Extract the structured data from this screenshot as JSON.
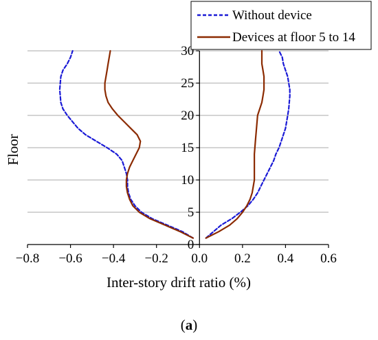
{
  "chart_data": {
    "type": "line",
    "title": "",
    "xlabel": "Inter-story drift ratio (%)",
    "ylabel": "Floor",
    "xlim": [
      -0.8,
      0.6
    ],
    "ylim": [
      0,
      30
    ],
    "x_ticks": [
      -0.8,
      -0.6,
      -0.4,
      -0.2,
      0.0,
      0.2,
      0.4,
      0.6
    ],
    "x_tick_labels": [
      "−0.8",
      "−0.6",
      "−0.4",
      "−0.2",
      "0.0",
      "0.2",
      "0.4",
      "0.6"
    ],
    "y_ticks": [
      0,
      5,
      10,
      15,
      20,
      25,
      30
    ],
    "y_tick_labels": [
      "0",
      "5",
      "10",
      "15",
      "20",
      "25",
      "30"
    ],
    "grid": "horizontal",
    "legend_position": "top-right",
    "series": [
      {
        "name": "Without device",
        "color": "#1a1ad6",
        "style": "dashed",
        "negative": [
          [
            -0.03,
            1
          ],
          [
            -0.08,
            2
          ],
          [
            -0.15,
            3
          ],
          [
            -0.22,
            4
          ],
          [
            -0.27,
            5
          ],
          [
            -0.3,
            6
          ],
          [
            -0.32,
            7
          ],
          [
            -0.33,
            8
          ],
          [
            -0.335,
            9
          ],
          [
            -0.335,
            10
          ],
          [
            -0.34,
            11
          ],
          [
            -0.35,
            12
          ],
          [
            -0.36,
            13
          ],
          [
            -0.385,
            14
          ],
          [
            -0.43,
            15
          ],
          [
            -0.48,
            16
          ],
          [
            -0.53,
            17
          ],
          [
            -0.565,
            18
          ],
          [
            -0.59,
            19
          ],
          [
            -0.615,
            20
          ],
          [
            -0.635,
            21
          ],
          [
            -0.645,
            22
          ],
          [
            -0.65,
            24
          ],
          [
            -0.645,
            26
          ],
          [
            -0.635,
            27
          ],
          [
            -0.615,
            28
          ],
          [
            -0.6,
            29
          ],
          [
            -0.59,
            30
          ]
        ],
        "positive": [
          [
            0.03,
            1
          ],
          [
            0.1,
            3
          ],
          [
            0.15,
            4
          ],
          [
            0.19,
            5
          ],
          [
            0.225,
            6
          ],
          [
            0.25,
            7
          ],
          [
            0.27,
            8
          ],
          [
            0.285,
            9
          ],
          [
            0.3,
            10
          ],
          [
            0.315,
            11
          ],
          [
            0.33,
            12
          ],
          [
            0.345,
            13
          ],
          [
            0.355,
            14
          ],
          [
            0.37,
            15
          ],
          [
            0.38,
            16
          ],
          [
            0.39,
            17
          ],
          [
            0.4,
            18
          ],
          [
            0.405,
            19
          ],
          [
            0.41,
            20
          ],
          [
            0.415,
            21
          ],
          [
            0.42,
            23
          ],
          [
            0.42,
            24
          ],
          [
            0.415,
            25
          ],
          [
            0.41,
            26
          ],
          [
            0.4,
            27
          ],
          [
            0.39,
            28
          ],
          [
            0.385,
            29
          ],
          [
            0.37,
            30
          ]
        ]
      },
      {
        "name": "Devices at floor 5 to 14",
        "color": "#8b2a00",
        "style": "solid",
        "negative": [
          [
            -0.03,
            1
          ],
          [
            -0.09,
            2
          ],
          [
            -0.16,
            3
          ],
          [
            -0.23,
            4
          ],
          [
            -0.28,
            5
          ],
          [
            -0.31,
            6
          ],
          [
            -0.325,
            7
          ],
          [
            -0.335,
            8
          ],
          [
            -0.34,
            9
          ],
          [
            -0.34,
            10
          ],
          [
            -0.335,
            11
          ],
          [
            -0.325,
            12
          ],
          [
            -0.31,
            13
          ],
          [
            -0.295,
            14
          ],
          [
            -0.28,
            15
          ],
          [
            -0.275,
            16
          ],
          [
            -0.29,
            17
          ],
          [
            -0.32,
            18
          ],
          [
            -0.35,
            19
          ],
          [
            -0.38,
            20
          ],
          [
            -0.405,
            21
          ],
          [
            -0.425,
            22
          ],
          [
            -0.435,
            23
          ],
          [
            -0.44,
            24
          ],
          [
            -0.44,
            25
          ],
          [
            -0.435,
            26
          ],
          [
            -0.43,
            27
          ],
          [
            -0.425,
            28
          ],
          [
            -0.42,
            29
          ],
          [
            -0.415,
            30
          ]
        ],
        "positive": [
          [
            0.03,
            1
          ],
          [
            0.09,
            2
          ],
          [
            0.14,
            3
          ],
          [
            0.175,
            4
          ],
          [
            0.2,
            5
          ],
          [
            0.22,
            6
          ],
          [
            0.235,
            7
          ],
          [
            0.245,
            8
          ],
          [
            0.25,
            9
          ],
          [
            0.255,
            10
          ],
          [
            0.255,
            12
          ],
          [
            0.255,
            14
          ],
          [
            0.26,
            16
          ],
          [
            0.265,
            18
          ],
          [
            0.27,
            20
          ],
          [
            0.28,
            21
          ],
          [
            0.29,
            22
          ],
          [
            0.295,
            23
          ],
          [
            0.3,
            24
          ],
          [
            0.3,
            25
          ],
          [
            0.3,
            26
          ],
          [
            0.295,
            27
          ],
          [
            0.29,
            28
          ],
          [
            0.29,
            29
          ],
          [
            0.29,
            30
          ]
        ]
      }
    ]
  },
  "caption": {
    "open": "(",
    "letter": "a",
    "close": ")"
  }
}
